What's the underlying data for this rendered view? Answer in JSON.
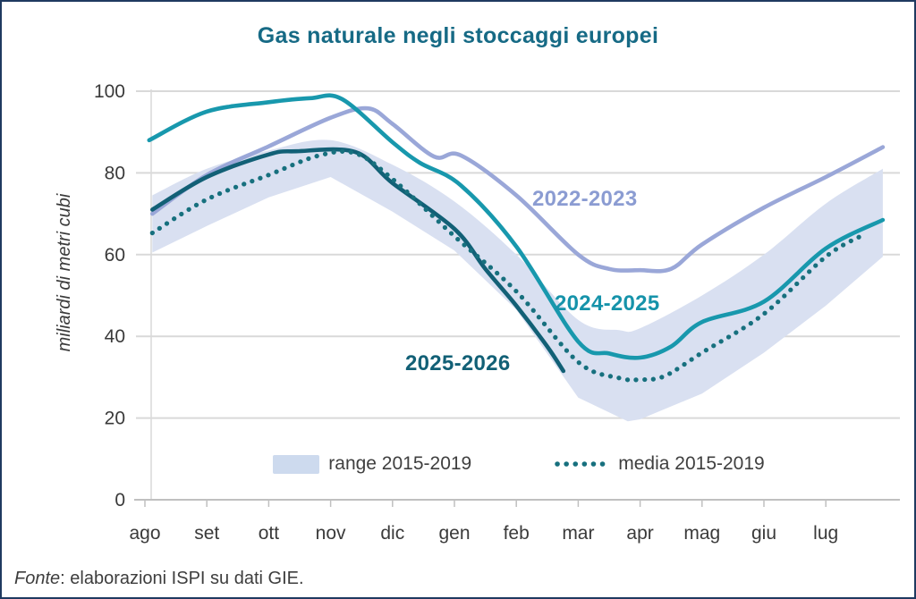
{
  "frame": {
    "border_color": "#1f3a60",
    "background": "#ffffff"
  },
  "footer": {
    "fonte": "Fonte",
    "rest": ": elaborazioni ISPI su dati GIE."
  },
  "legend": [
    {
      "label": "range 2015-2019",
      "swatch": "band",
      "color": "#cddaee"
    },
    {
      "label": "media 2015-2019",
      "swatch": "dotted-line",
      "color": "#17707e"
    }
  ],
  "colors": {
    "title": "#166a85",
    "gridline": "#d9d9d9",
    "axis": "#c0c0c0",
    "tick_text": "#3a3a3a",
    "band_fill": "#d9e0f1"
  },
  "chart_data": {
    "type": "line",
    "title": "Gas naturale negli stoccaggi europei",
    "xlabel": "",
    "ylabel": "miliardi di metri cubi",
    "ylim": [
      0,
      100
    ],
    "yticks": [
      0,
      20,
      40,
      60,
      80,
      100
    ],
    "grid": "horizontal",
    "legend_position": "bottom",
    "categories": [
      "ago",
      "set",
      "ott",
      "nov",
      "dic",
      "gen",
      "feb",
      "mar",
      "apr",
      "mag",
      "giu",
      "lug"
    ],
    "band": {
      "name": "range 2015-2019",
      "color": "#d9e0f1",
      "top": [
        [
          0.12,
          74.5
        ],
        [
          1,
          81
        ],
        [
          2,
          85.5
        ],
        [
          3,
          88
        ],
        [
          4,
          82
        ],
        [
          5,
          73
        ],
        [
          6,
          60
        ],
        [
          7,
          44
        ],
        [
          7.66,
          41.5
        ],
        [
          8,
          42
        ],
        [
          9,
          50
        ],
        [
          10,
          60
        ],
        [
          11,
          72.5
        ],
        [
          11.92,
          81
        ]
      ],
      "bottom": [
        [
          0.12,
          60.5
        ],
        [
          1,
          67
        ],
        [
          2,
          74
        ],
        [
          3,
          79
        ],
        [
          4,
          70.5
        ],
        [
          5,
          61
        ],
        [
          6,
          46.5
        ],
        [
          7,
          25
        ],
        [
          7.8,
          19.2
        ],
        [
          8,
          19.7
        ],
        [
          9,
          26
        ],
        [
          10,
          36
        ],
        [
          11,
          47.5
        ],
        [
          11.92,
          59.5
        ]
      ]
    },
    "series": [
      {
        "name": "2022-2023",
        "color": "#9aa7d8",
        "style": "solid",
        "points": [
          [
            0.12,
            70
          ],
          [
            1,
            79.5
          ],
          [
            2,
            86.5
          ],
          [
            3,
            93.5
          ],
          [
            3.6,
            95.8
          ],
          [
            4,
            92
          ],
          [
            4.67,
            84
          ],
          [
            5.1,
            84.3
          ],
          [
            6,
            74.5
          ],
          [
            7,
            60
          ],
          [
            7.5,
            56.5
          ],
          [
            8,
            56.2
          ],
          [
            8.5,
            56.5
          ],
          [
            9,
            62.5
          ],
          [
            10,
            71.5
          ],
          [
            11,
            79
          ],
          [
            11.92,
            86.3
          ]
        ]
      },
      {
        "name": "2024-2025",
        "color": "#1898ad",
        "style": "solid",
        "points": [
          [
            0.07,
            88
          ],
          [
            1,
            95
          ],
          [
            2,
            97.3
          ],
          [
            2.67,
            98.3
          ],
          [
            3.18,
            98.1
          ],
          [
            4,
            87.5
          ],
          [
            4.44,
            82.5
          ],
          [
            5.1,
            77
          ],
          [
            6,
            62
          ],
          [
            7,
            38.7
          ],
          [
            7.5,
            35.8
          ],
          [
            8,
            34.8
          ],
          [
            8.5,
            37.5
          ],
          [
            9,
            43.5
          ],
          [
            10,
            48.5
          ],
          [
            11,
            61.5
          ],
          [
            11.92,
            68.5
          ]
        ]
      },
      {
        "name": "2025-2026",
        "color": "#126076",
        "style": "solid",
        "points": [
          [
            0.12,
            71
          ],
          [
            1,
            79
          ],
          [
            2,
            84.5
          ],
          [
            2.45,
            85.3
          ],
          [
            3.4,
            85.1
          ],
          [
            4,
            77.5
          ],
          [
            5,
            66.3
          ],
          [
            5.5,
            56.5
          ],
          [
            6,
            47.5
          ],
          [
            6.5,
            37.5
          ],
          [
            6.76,
            31.5
          ]
        ]
      },
      {
        "name": "media 2015-2019",
        "color": "#17707e",
        "style": "dotted",
        "points": [
          [
            0.12,
            65.3
          ],
          [
            1,
            73.5
          ],
          [
            2,
            79.5
          ],
          [
            2.8,
            84.2
          ],
          [
            3.4,
            84.8
          ],
          [
            4,
            78.5
          ],
          [
            5,
            64.5
          ],
          [
            6,
            51
          ],
          [
            7,
            33.7
          ],
          [
            7.66,
            29.8
          ],
          [
            8,
            29.4
          ],
          [
            8.4,
            30.3
          ],
          [
            9,
            36
          ],
          [
            10,
            45.5
          ],
          [
            11,
            59.5
          ],
          [
            11.6,
            64.8
          ]
        ]
      }
    ]
  }
}
